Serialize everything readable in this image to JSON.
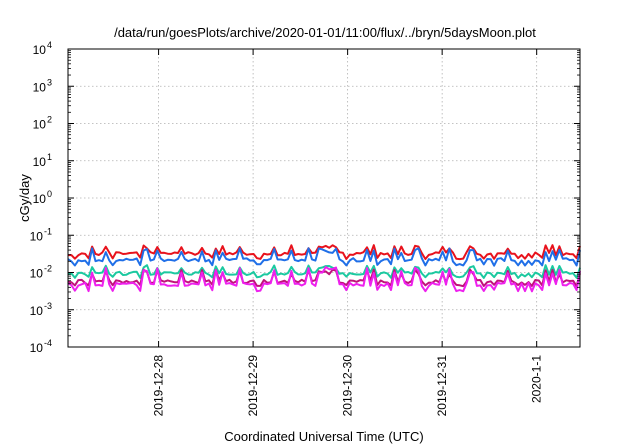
{
  "chart_data": {
    "type": "line",
    "title": "/data/run/goesPlots/archive/2020-01-01/11:00/flux/../bryn/5daysMoon.plot",
    "xlabel": "Coordinated Universal Time (UTC)",
    "ylabel": "cGy/day",
    "yscale": "log",
    "ylim": [
      0.0001,
      10000
    ],
    "xlim": [
      "2019-12-27 01:00",
      "2020-01-01 11:00"
    ],
    "grid": true,
    "y_ticks": [
      {
        "base": "10",
        "exp": "-4"
      },
      {
        "base": "10",
        "exp": "-3"
      },
      {
        "base": "10",
        "exp": "-2"
      },
      {
        "base": "10",
        "exp": "-1"
      },
      {
        "base": "10",
        "exp": "0"
      },
      {
        "base": "10",
        "exp": "1"
      },
      {
        "base": "10",
        "exp": "2"
      },
      {
        "base": "10",
        "exp": "3"
      },
      {
        "base": "10",
        "exp": "4"
      }
    ],
    "x_ticks": [
      {
        "label": "2019-12-28",
        "value": "2019-12-28 00:00"
      },
      {
        "label": "2019-12-29",
        "value": "2019-12-29 00:00"
      },
      {
        "label": "2019-12-30",
        "value": "2019-12-30 00:00"
      },
      {
        "label": "2019-12-31",
        "value": "2019-12-31 00:00"
      },
      {
        "label": "2020-1-1",
        "value": "2020-01-01 00:00"
      }
    ],
    "series": [
      {
        "color": "#e8121c",
        "baseline": 0.032,
        "spike_high": 0.055,
        "dip_low": 0.024
      },
      {
        "color": "#1f6fe8",
        "baseline": 0.022,
        "spike_high": 0.045,
        "dip_low": 0.016
      },
      {
        "color": "#1bc9a0",
        "baseline": 0.0095,
        "spike_high": 0.016,
        "dip_low": 0.0075
      },
      {
        "color": "#c0127a",
        "baseline": 0.0058,
        "spike_high": 0.012,
        "dip_low": 0.0045
      },
      {
        "color": "#ee20ee",
        "baseline": 0.0048,
        "spike_high": 0.014,
        "dip_low": 0.0033
      }
    ]
  }
}
